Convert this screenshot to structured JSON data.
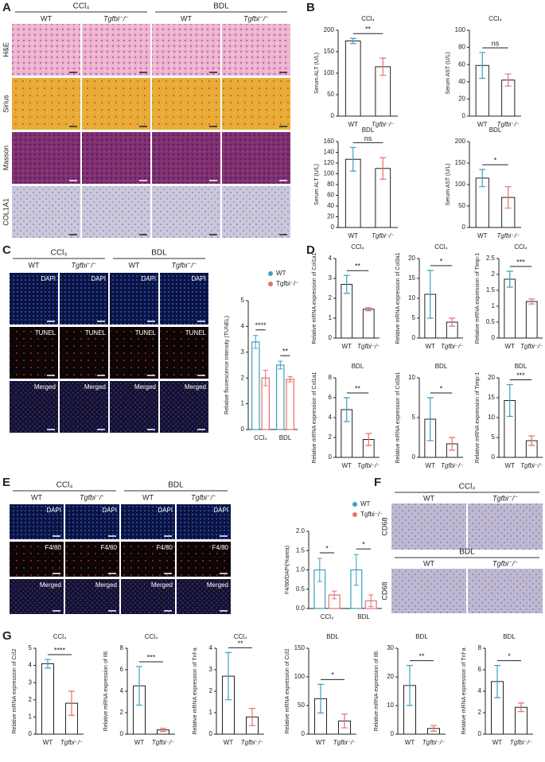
{
  "panel_labels": [
    "A",
    "B",
    "C",
    "D",
    "E",
    "F",
    "G"
  ],
  "micrographs": {
    "A": {
      "group_headers": [
        "CCl₄",
        "BDL"
      ],
      "column_headers": [
        "WT",
        "Tgfbi⁻/⁻",
        "WT",
        "Tgfbi⁻/⁻"
      ],
      "row_labels": [
        "H&E",
        "Sirius",
        "Masson",
        "COL1A1"
      ]
    },
    "C": {
      "group_headers": [
        "CCl₄",
        "BDL"
      ],
      "column_headers": [
        "WT",
        "Tgfbi⁻/⁻",
        "WT",
        "Tgfbi⁻/⁻"
      ],
      "stains": [
        "DAPI",
        "TUNEL",
        "Merged"
      ]
    },
    "E": {
      "group_headers": [
        "CCl₄",
        "BDL"
      ],
      "column_headers": [
        "WT",
        "Tgfbi⁻/⁻",
        "WT",
        "Tgfbi⁻/⁻"
      ],
      "stains": [
        "DAPI",
        "F4/80",
        "Merged"
      ]
    },
    "F": {
      "groups": [
        {
          "title": "CCl₄",
          "column_headers": [
            "WT",
            "Tgfbi⁻/⁻"
          ],
          "stain": "CD68"
        },
        {
          "title": "BDL",
          "column_headers": [
            "WT",
            "Tgfbi⁻/⁻"
          ],
          "stain": "CD68"
        }
      ]
    }
  },
  "chart_data": [
    {
      "type": "bar",
      "title": "CCl₄",
      "ylabel": "Serum ALT (U/L)",
      "categories": [
        "WT",
        "Tgfbi⁻/⁻"
      ],
      "values": [
        175,
        115
      ],
      "errors": [
        6,
        20
      ],
      "colors": [
        "#3d9fc0",
        "#e96f6d"
      ],
      "ylim": [
        0,
        200
      ],
      "yticks": [
        0,
        50,
        100,
        150,
        200
      ],
      "significance": "**"
    },
    {
      "type": "bar",
      "title": "CCl₄",
      "ylabel": "Serum AST (U/L)",
      "categories": [
        "WT",
        "Tgfbi⁻/⁻"
      ],
      "values": [
        59,
        42
      ],
      "errors": [
        15,
        7
      ],
      "colors": [
        "#3d9fc0",
        "#e96f6d"
      ],
      "ylim": [
        0,
        100
      ],
      "yticks": [
        0,
        20,
        40,
        60,
        80,
        100
      ],
      "significance": "ns"
    },
    {
      "type": "bar",
      "title": "BDL",
      "ylabel": "Serum ALT (U/L)",
      "categories": [
        "WT",
        "Tgfbi⁻/⁻"
      ],
      "values": [
        127,
        110
      ],
      "errors": [
        22,
        20
      ],
      "colors": [
        "#3d9fc0",
        "#e96f6d"
      ],
      "ylim": [
        0,
        160
      ],
      "yticks": [
        0,
        20,
        40,
        60,
        80,
        100,
        120,
        140,
        160
      ],
      "significance": "ns"
    },
    {
      "type": "bar",
      "title": "BDL",
      "ylabel": "Serum AST (U/L)",
      "categories": [
        "WT",
        "Tgfbi⁻/⁻"
      ],
      "values": [
        115,
        70
      ],
      "errors": [
        20,
        25
      ],
      "colors": [
        "#3d9fc0",
        "#e96f6d"
      ],
      "ylim": [
        0,
        200
      ],
      "yticks": [
        0,
        50,
        100,
        150,
        200
      ],
      "significance": "*"
    },
    {
      "type": "bar",
      "ylabel": "Relative fluorescence intensity (TUNEL)",
      "categories": [
        "CCl₄",
        "BDL"
      ],
      "series": [
        {
          "name": "WT",
          "color": "#3d9fc0",
          "values": [
            3.4,
            2.5
          ],
          "errors": [
            0.25,
            0.15
          ]
        },
        {
          "name": "Tgfbi⁻/⁻",
          "color": "#e96f6d",
          "values": [
            2.0,
            1.95
          ],
          "errors": [
            0.3,
            0.1
          ]
        }
      ],
      "ylim": [
        0,
        5
      ],
      "yticks": [
        0,
        1,
        2,
        3,
        4,
        5
      ],
      "significance": [
        "****",
        "**"
      ]
    },
    {
      "type": "bar",
      "title": "CCl₄",
      "ylabel": "Relative mRNA expression of Col1a1",
      "categories": [
        "WT",
        "Tgfbi⁻/⁻"
      ],
      "values": [
        2.7,
        1.45
      ],
      "errors": [
        0.45,
        0.08
      ],
      "colors": [
        "#3d9fc0",
        "#e96f6d"
      ],
      "ylim": [
        0,
        4
      ],
      "yticks": [
        0,
        1,
        2,
        3,
        4
      ],
      "significance": "**"
    },
    {
      "type": "bar",
      "title": "CCl₄",
      "ylabel": "Relative mRNA expression of Col3a1",
      "categories": [
        "WT",
        "Tgfbi⁻/⁻"
      ],
      "values": [
        11,
        4
      ],
      "errors": [
        6,
        1
      ],
      "colors": [
        "#3d9fc0",
        "#e96f6d"
      ],
      "ylim": [
        0,
        20
      ],
      "yticks": [
        0,
        5,
        10,
        15,
        20
      ],
      "significance": "*"
    },
    {
      "type": "bar",
      "title": "CCl₄",
      "ylabel": "Relative mRNA expression of Timp-1",
      "categories": [
        "WT",
        "Tgfbi⁻/⁻"
      ],
      "values": [
        1.85,
        1.15
      ],
      "errors": [
        0.25,
        0.08
      ],
      "colors": [
        "#3d9fc0",
        "#e96f6d"
      ],
      "ylim": [
        0,
        2.5
      ],
      "yticks": [
        0,
        0.5,
        1,
        1.5,
        2,
        2.5
      ],
      "significance": "***"
    },
    {
      "type": "bar",
      "title": "BDL",
      "ylabel": "Relative mRNA expression of Col1a1",
      "categories": [
        "WT",
        "Tgfbi⁻/⁻"
      ],
      "values": [
        4.8,
        1.8
      ],
      "errors": [
        1.2,
        0.6
      ],
      "colors": [
        "#3d9fc0",
        "#e96f6d"
      ],
      "ylim": [
        0,
        8
      ],
      "yticks": [
        0,
        2,
        4,
        6,
        8
      ],
      "significance": "**"
    },
    {
      "type": "bar",
      "title": "BDL",
      "ylabel": "Relative mRNA expression of Col3a1",
      "categories": [
        "WT",
        "Tgfbi⁻/⁻"
      ],
      "values": [
        4.8,
        1.7
      ],
      "errors": [
        2.7,
        0.8
      ],
      "colors": [
        "#3d9fc0",
        "#e96f6d"
      ],
      "ylim": [
        0,
        10
      ],
      "yticks": [
        0,
        5,
        10
      ],
      "significance": "*"
    },
    {
      "type": "bar",
      "title": "BDL",
      "ylabel": "Relative mRNA expression of Timp-1",
      "categories": [
        "WT",
        "Tgfbi⁻/⁻"
      ],
      "values": [
        14.3,
        4.2
      ],
      "errors": [
        4,
        1.2
      ],
      "colors": [
        "#3d9fc0",
        "#e96f6d"
      ],
      "ylim": [
        0,
        20
      ],
      "yticks": [
        0,
        5,
        10,
        15,
        20
      ],
      "significance": "***"
    },
    {
      "type": "bar",
      "ylabel": "F4/80/DAPI(%area)",
      "categories": [
        "CCl₄",
        "BDL"
      ],
      "series": [
        {
          "name": "WT",
          "color": "#3d9fc0",
          "values": [
            1.0,
            1.0
          ],
          "errors": [
            0.3,
            0.4
          ]
        },
        {
          "name": "Tgfbi⁻/⁻",
          "color": "#e96f6d",
          "values": [
            0.35,
            0.2
          ],
          "errors": [
            0.1,
            0.15
          ]
        }
      ],
      "ylim": [
        0,
        2
      ],
      "yticks": [
        {
          "value": 0,
          "label": "0.0"
        },
        {
          "value": 0.5,
          "label": "0.5"
        },
        {
          "value": 1,
          "label": "1.0"
        },
        {
          "value": 1.5,
          "label": "1.5"
        },
        {
          "value": 2,
          "label": "2.0"
        }
      ],
      "significance": [
        "*",
        "*"
      ]
    },
    {
      "type": "bar",
      "title": "CCl₄",
      "ylabel": "Relative mRNA expression of Ccl2",
      "categories": [
        "WT",
        "Tgfbi⁻/⁻"
      ],
      "values": [
        4.1,
        1.8
      ],
      "errors": [
        0.25,
        0.7
      ],
      "colors": [
        "#3d9fc0",
        "#e96f6d"
      ],
      "ylim": [
        0,
        5
      ],
      "yticks": [
        0,
        1,
        2,
        3,
        4,
        5
      ],
      "significance": "****"
    },
    {
      "type": "bar",
      "title": "CCl₄",
      "ylabel": "Relative mRNA expression of Il6",
      "categories": [
        "WT",
        "Tgfbi⁻/⁻"
      ],
      "values": [
        4.5,
        0.4
      ],
      "errors": [
        1.8,
        0.15
      ],
      "colors": [
        "#3d9fc0",
        "#e96f6d"
      ],
      "ylim": [
        0,
        8
      ],
      "yticks": [
        0,
        2,
        4,
        6,
        8
      ],
      "significance": "***"
    },
    {
      "type": "bar",
      "title": "CCl₄",
      "ylabel": "Relative mRNA expression of Tnf-a",
      "categories": [
        "WT",
        "Tgfbi⁻/⁻"
      ],
      "values": [
        2.7,
        0.8
      ],
      "errors": [
        1.1,
        0.4
      ],
      "colors": [
        "#3d9fc0",
        "#e96f6d"
      ],
      "ylim": [
        0,
        4
      ],
      "yticks": [
        0,
        1,
        2,
        3,
        4
      ],
      "significance": "**"
    },
    {
      "type": "bar",
      "title": "BDL",
      "ylabel": "Relative mRNA expression of Ccl2",
      "categories": [
        "WT",
        "Tgfbi⁻/⁻"
      ],
      "values": [
        62,
        23
      ],
      "errors": [
        25,
        12
      ],
      "colors": [
        "#3d9fc0",
        "#e96f6d"
      ],
      "ylim": [
        0,
        150
      ],
      "yticks": [
        0,
        50,
        100,
        150
      ],
      "significance": "*"
    },
    {
      "type": "bar",
      "title": "BDL",
      "ylabel": "Relative mRNA expression of Il6",
      "categories": [
        "WT",
        "Tgfbi⁻/⁻"
      ],
      "values": [
        17,
        2
      ],
      "errors": [
        7,
        1
      ],
      "colors": [
        "#3d9fc0",
        "#e96f6d"
      ],
      "ylim": [
        0,
        30
      ],
      "yticks": [
        0,
        10,
        20,
        30
      ],
      "significance": "**"
    },
    {
      "type": "bar",
      "title": "BDL",
      "ylabel": "Relative mRNA expression of Tnf-a",
      "categories": [
        "WT",
        "Tgfbi⁻/⁻"
      ],
      "values": [
        4.9,
        2.5
      ],
      "errors": [
        1.5,
        0.4
      ],
      "colors": [
        "#3d9fc0",
        "#e96f6d"
      ],
      "ylim": [
        0,
        8
      ],
      "yticks": [
        0,
        2,
        4,
        6,
        8
      ],
      "significance": "*"
    }
  ]
}
